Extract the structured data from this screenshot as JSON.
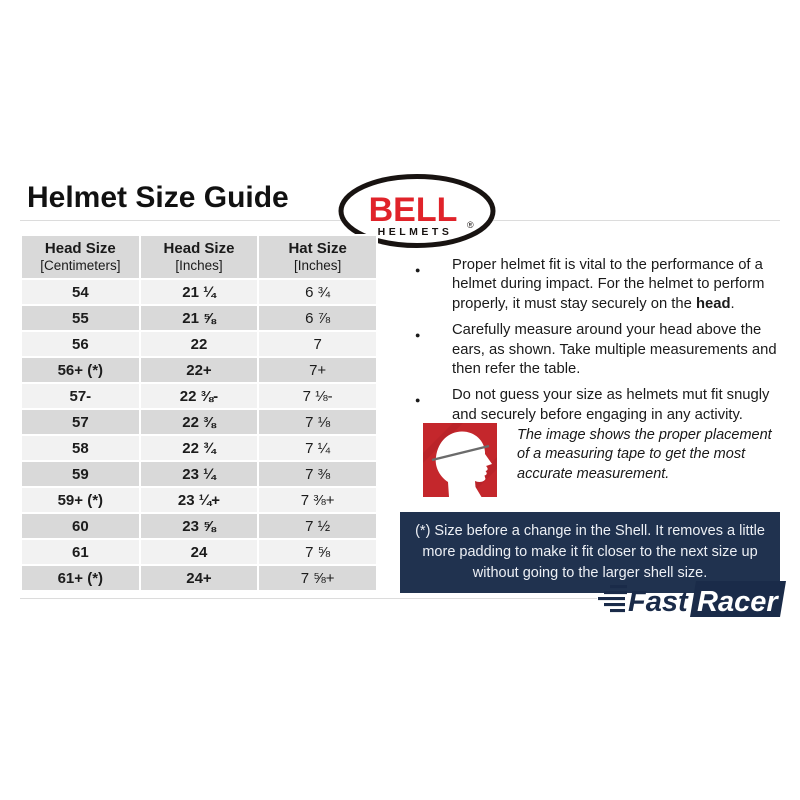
{
  "page": {
    "title": "Helmet Size Guide"
  },
  "brand": {
    "bell": {
      "name": "BELL",
      "sub": "HELMETS",
      "reg": "®"
    }
  },
  "table": {
    "headers": [
      {
        "line1": "Head Size",
        "line2": "[Centimeters]"
      },
      {
        "line1": "Head Size",
        "line2": "[Inches]"
      },
      {
        "line1": "Hat Size",
        "line2": "[Inches]"
      }
    ],
    "rows": [
      [
        "54",
        "21 ¼",
        "6 ¾"
      ],
      [
        "55",
        "21 ⅝",
        "6 ⅞"
      ],
      [
        "56",
        "22",
        "7"
      ],
      [
        "56+ (*)",
        "22+",
        "7+"
      ],
      [
        "57-",
        "22 ⅜-",
        "7 ⅛-"
      ],
      [
        "57",
        "22 ⅜",
        "7 ⅛"
      ],
      [
        "58",
        "22 ¾",
        "7 ¼"
      ],
      [
        "59",
        "23 ¼",
        "7 ⅜"
      ],
      [
        "59+ (*)",
        "23 ¼+",
        "7 ⅜+"
      ],
      [
        "60",
        "23 ⅝",
        "7 ½"
      ],
      [
        "61",
        "24",
        "7 ⅝"
      ],
      [
        "61+ (*)",
        "24+",
        "7 ⅝+"
      ]
    ]
  },
  "bullets": [
    {
      "segments": [
        {
          "text": "Proper helmet fit is vital to the performance of a helmet during impact. For the helmet to perform properly, it must stay securely on the "
        },
        {
          "text": "head",
          "bold": true
        },
        {
          "text": "."
        }
      ]
    },
    {
      "segments": [
        {
          "text": "Carefully measure around your head above the ears, as shown. Take multiple measurements and then refer the table."
        }
      ]
    },
    {
      "segments": [
        {
          "text": "Do not guess your size as helmets mut fit snugly and securely before engaging in any activity."
        }
      ]
    }
  ],
  "figure": {
    "caption": "The image shows the proper placement of a measuring tape to get the most accurate measurement."
  },
  "note": {
    "text": "(*) Size before a change in the Shell. It removes a little more padding to make it fit closer to the next size up without going to the larger shell size."
  },
  "footer": {
    "logo": {
      "fast": "Fast",
      "racer": "Racer"
    }
  },
  "colors": {
    "bell_red": "#e0232a",
    "figure_red": "#c4272c",
    "note_navy": "#20324f",
    "logo_navy": "#1a2b49",
    "row_light": "#f2f2f2",
    "row_dark": "#d9d9d9"
  }
}
